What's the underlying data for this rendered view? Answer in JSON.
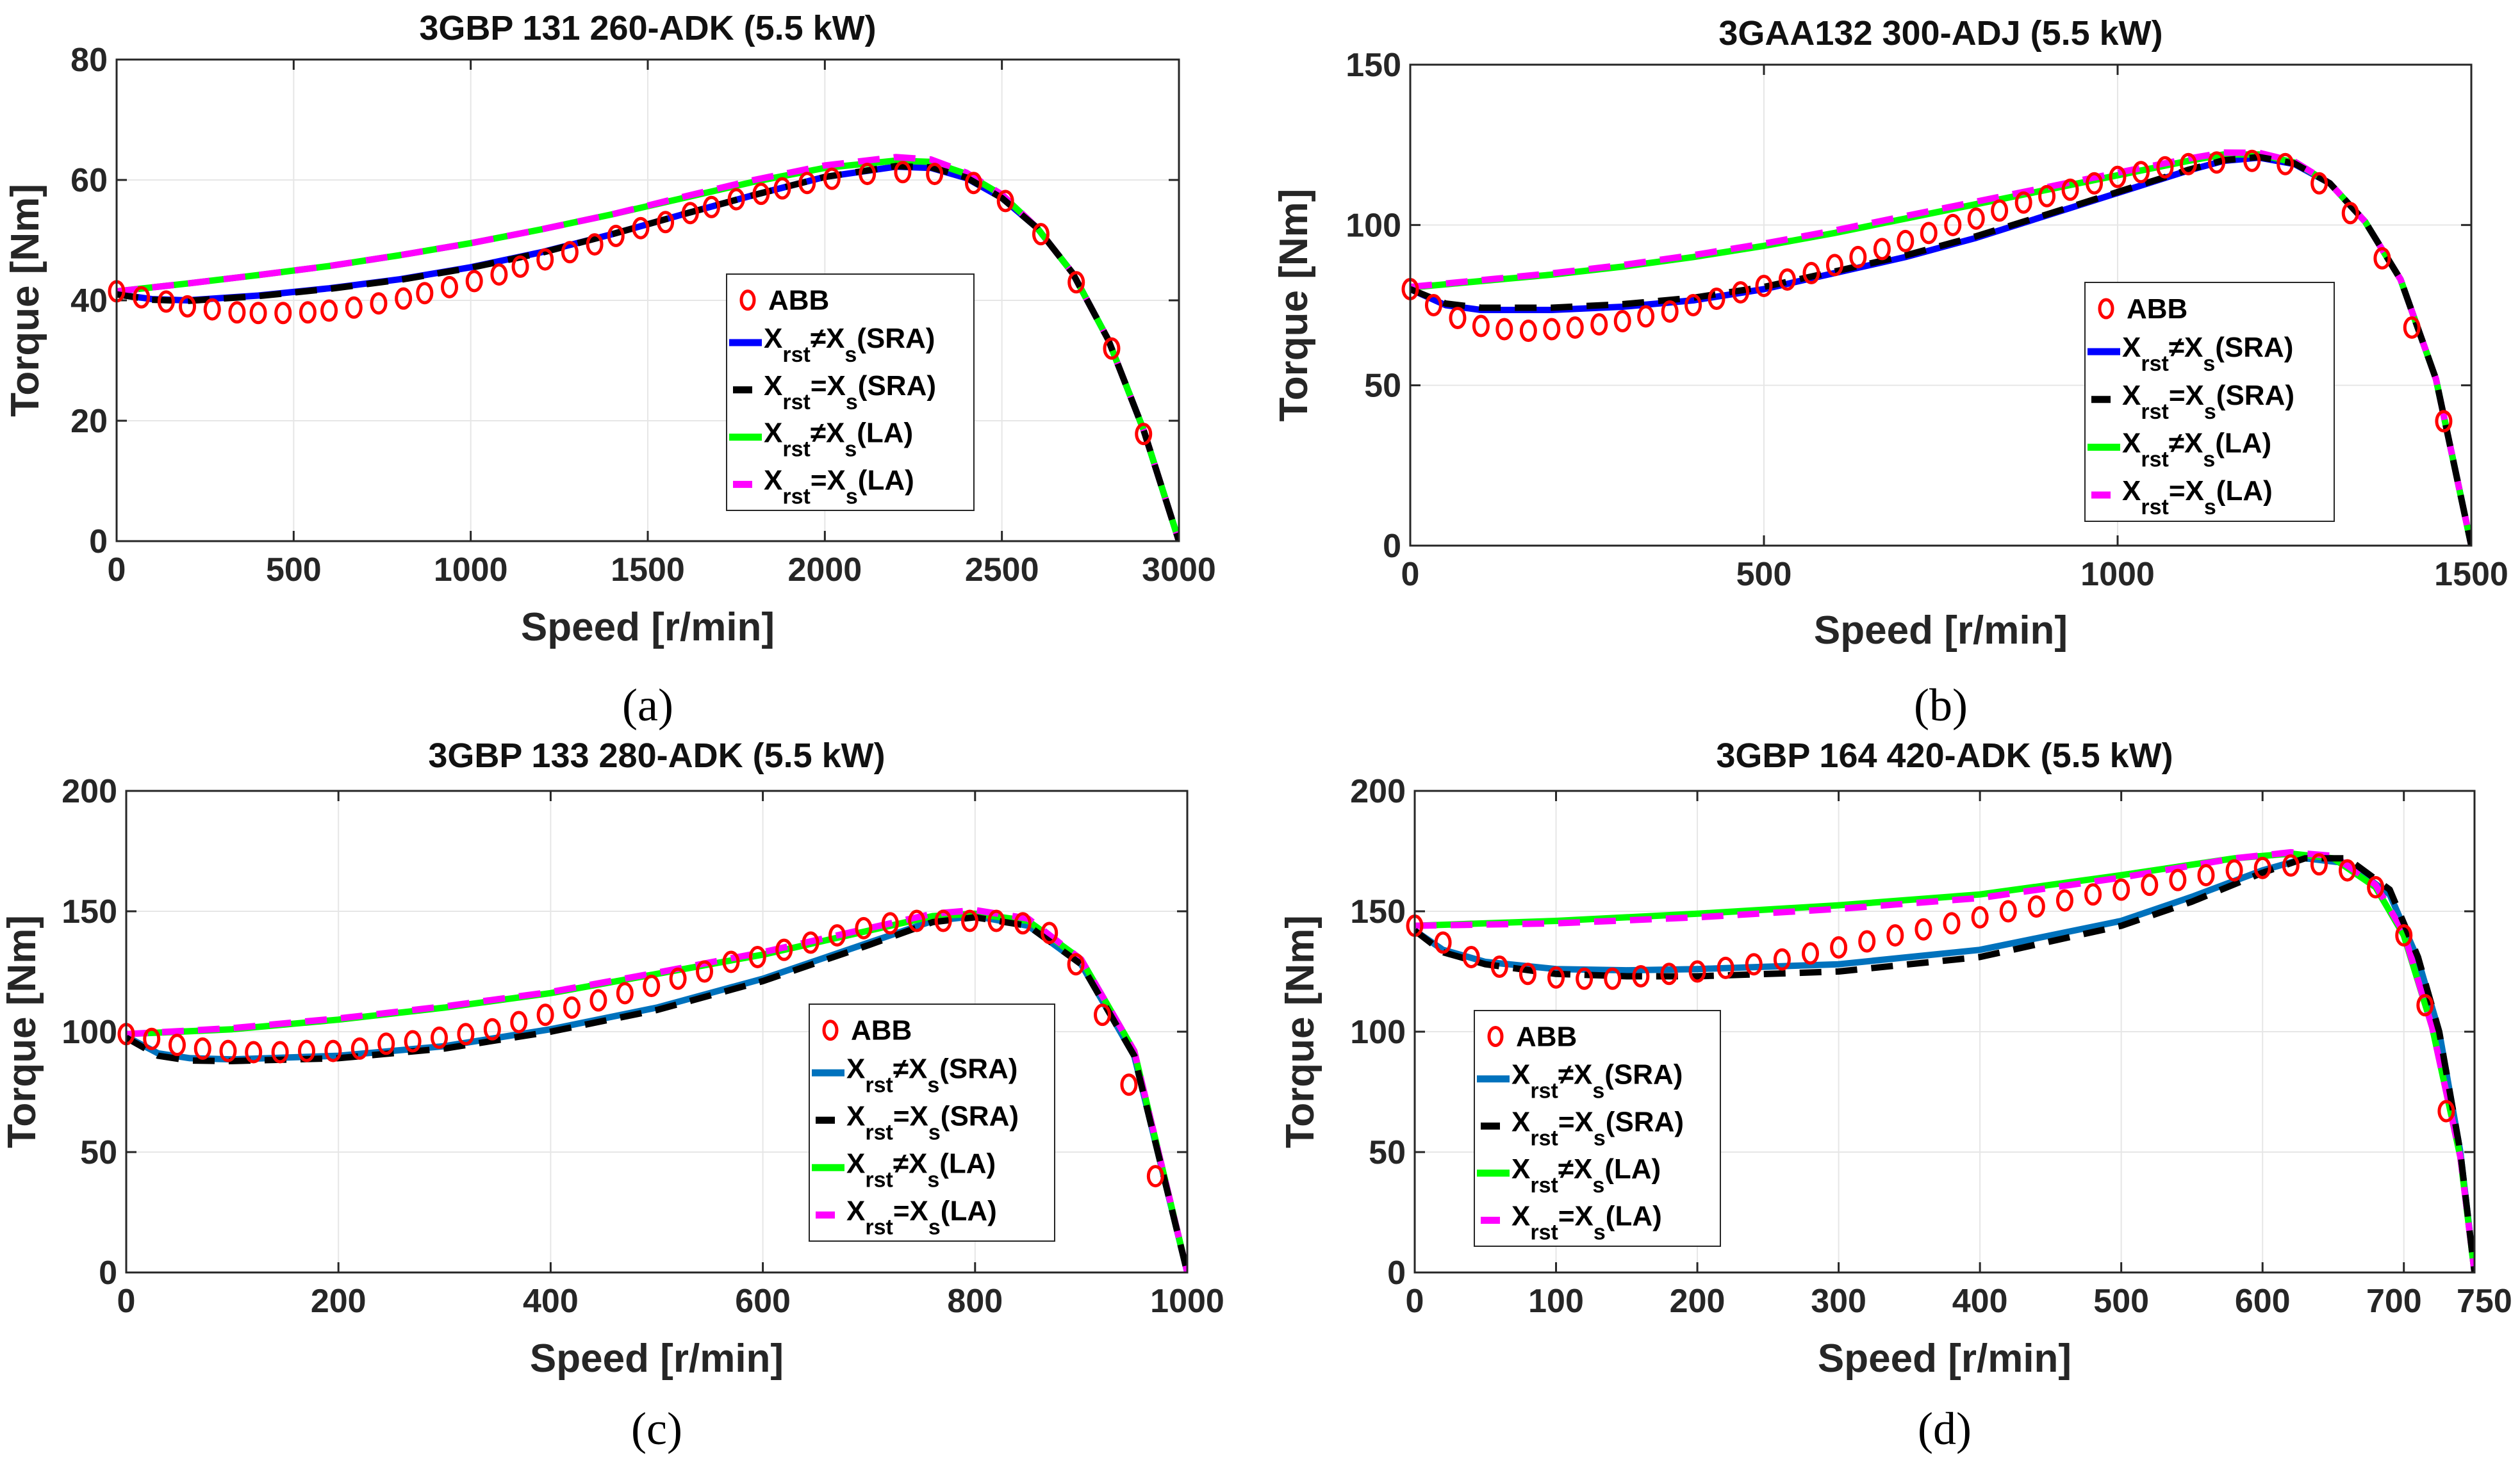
{
  "chart_data": [
    {
      "type": "line",
      "panel": "(a)",
      "title": "3GBP 131 260-ADK (5.5 kW)",
      "xlabel": "Speed [r/min]",
      "ylabel": "Torque [Nm]",
      "xlim": [
        0,
        3000
      ],
      "ylim": [
        0,
        80
      ],
      "xticks": [
        0,
        500,
        1000,
        1500,
        2000,
        2500,
        3000
      ],
      "yticks": [
        0,
        20,
        40,
        60,
        80
      ],
      "grid": true,
      "legend_position": "center-right",
      "sra_color": "#0000ff",
      "abb": {
        "x": [
          0,
          70,
          140,
          200,
          270,
          340,
          400,
          470,
          540,
          600,
          670,
          740,
          810,
          870,
          940,
          1010,
          1080,
          1140,
          1210,
          1280,
          1350,
          1410,
          1480,
          1550,
          1620,
          1680,
          1750,
          1820,
          1880,
          1950,
          2020,
          2120,
          2220,
          2310,
          2420,
          2510,
          2610,
          2710,
          2810,
          2900
        ],
        "y": [
          41.5,
          40.5,
          39.8,
          39,
          38.5,
          38,
          37.9,
          37.9,
          38,
          38.3,
          38.8,
          39.5,
          40.3,
          41.2,
          42.2,
          43.2,
          44.3,
          45.6,
          46.8,
          48,
          49.3,
          50.7,
          52,
          53,
          54.5,
          55.5,
          56.8,
          57.7,
          58.6,
          59.5,
          60.2,
          61,
          61.3,
          61,
          59.5,
          56.5,
          51,
          43,
          32,
          17.8
        ]
      },
      "sra_neq": {
        "x": [
          0,
          100,
          200,
          400,
          600,
          800,
          1000,
          1200,
          1400,
          1600,
          1800,
          2000,
          2200,
          2300,
          2400,
          2500,
          2600,
          2700,
          2800,
          2900,
          3000
        ],
        "y": [
          41,
          40.2,
          40,
          40.8,
          42,
          43.5,
          45.5,
          48,
          51,
          54.3,
          57.5,
          60.5,
          62.2,
          62,
          60.3,
          57,
          52,
          44.5,
          33.5,
          18.5,
          0
        ]
      },
      "sra_eq": {
        "x": [
          0,
          100,
          200,
          400,
          600,
          800,
          1000,
          1200,
          1400,
          1600,
          1800,
          2000,
          2200,
          2300,
          2400,
          2500,
          2600,
          2700,
          2800,
          2900,
          3000
        ],
        "y": [
          41,
          40.1,
          39.9,
          40.7,
          41.9,
          43.4,
          45.4,
          47.9,
          51,
          54.3,
          57.5,
          60.5,
          62.3,
          62.1,
          60.4,
          57,
          52,
          44.5,
          33.5,
          18.5,
          0
        ]
      },
      "la_neq": {
        "x": [
          0,
          200,
          400,
          600,
          800,
          1000,
          1200,
          1400,
          1600,
          1800,
          2000,
          2200,
          2300,
          2400,
          2500,
          2600,
          2700,
          2800,
          2900,
          3000
        ],
        "y": [
          41.5,
          42.8,
          44.2,
          45.7,
          47.5,
          49.5,
          51.8,
          54.3,
          57,
          59.7,
          62,
          63.2,
          63,
          61,
          57.5,
          52,
          44.5,
          33.5,
          18.5,
          0
        ]
      },
      "la_eq": {
        "x": [
          0,
          200,
          400,
          600,
          800,
          1000,
          1200,
          1400,
          1600,
          1800,
          2000,
          2200,
          2300,
          2400,
          2500,
          2600,
          2700,
          2800,
          2900,
          3000
        ],
        "y": [
          41.5,
          42.8,
          44.2,
          45.7,
          47.5,
          49.5,
          51.8,
          54.3,
          57.2,
          60,
          62.4,
          63.8,
          63.4,
          61.2,
          57.6,
          52,
          44.5,
          33.5,
          18.5,
          0
        ]
      }
    },
    {
      "type": "line",
      "panel": "(b)",
      "title": "3GAA132 300-ADJ (5.5 kW)",
      "xlabel": "Speed [r/min]",
      "ylabel": "Torque [Nm]",
      "xlim": [
        0,
        1500
      ],
      "ylim": [
        0,
        150
      ],
      "xticks": [
        0,
        500,
        1000,
        1500
      ],
      "yticks": [
        0,
        50,
        100,
        150
      ],
      "grid": true,
      "legend_position": "center-right",
      "sra_color": "#0000ff",
      "abb": {
        "x": [
          0,
          33,
          67,
          100,
          133,
          167,
          200,
          233,
          267,
          300,
          333,
          367,
          400,
          433,
          467,
          500,
          533,
          567,
          600,
          633,
          667,
          700,
          733,
          767,
          800,
          833,
          867,
          900,
          933,
          967,
          1000,
          1033,
          1067,
          1100,
          1140,
          1190,
          1237,
          1285,
          1329,
          1374,
          1416,
          1461
        ],
        "y": [
          80,
          75,
          71,
          68.5,
          67.5,
          67,
          67.5,
          68,
          69,
          70,
          71.5,
          73,
          75,
          77,
          79,
          81,
          83,
          85,
          87.5,
          90,
          92.5,
          95,
          97.5,
          100,
          102,
          104.5,
          107,
          109,
          111,
          113,
          115,
          116.5,
          118,
          119,
          119.5,
          120,
          119,
          113,
          103.7,
          89.6,
          68,
          38.8
        ]
      },
      "sra_neq": {
        "x": [
          0,
          50,
          100,
          200,
          300,
          400,
          500,
          600,
          700,
          800,
          900,
          1000,
          1100,
          1150,
          1200,
          1250,
          1300,
          1350,
          1400,
          1450,
          1500
        ],
        "y": [
          80,
          75,
          73.5,
          73.5,
          74.5,
          76.5,
          80,
          85,
          90,
          96,
          103,
          110,
          117,
          120,
          121,
          119,
          113,
          101,
          83,
          52,
          0
        ]
      },
      "sra_eq": {
        "x": [
          0,
          50,
          100,
          200,
          300,
          400,
          500,
          600,
          700,
          800,
          900,
          1000,
          1100,
          1150,
          1200,
          1250,
          1300,
          1350,
          1400,
          1450,
          1500
        ],
        "y": [
          80,
          75.5,
          74.2,
          74.2,
          75.3,
          77.3,
          80.7,
          85.5,
          90.5,
          96.5,
          103.3,
          110.3,
          117.2,
          120.2,
          121.2,
          119.2,
          113,
          101,
          83,
          52,
          0
        ]
      },
      "la_neq": {
        "x": [
          0,
          100,
          200,
          300,
          400,
          500,
          600,
          700,
          800,
          900,
          1000,
          1100,
          1150,
          1200,
          1250,
          1300,
          1350,
          1400,
          1450,
          1500
        ],
        "y": [
          80.5,
          82.5,
          84.5,
          87,
          90,
          93.5,
          97.5,
          102,
          106.5,
          111,
          115.5,
          120,
          122,
          122,
          119.5,
          113,
          101,
          83,
          52,
          0
        ]
      },
      "la_eq": {
        "x": [
          0,
          100,
          200,
          300,
          400,
          500,
          600,
          700,
          800,
          900,
          1000,
          1100,
          1150,
          1200,
          1250,
          1300,
          1350,
          1400,
          1450,
          1500
        ],
        "y": [
          80.7,
          82.8,
          84.9,
          87.5,
          90.6,
          94.2,
          98.3,
          102.8,
          107.3,
          111.8,
          116.3,
          120.7,
          122.6,
          122.5,
          119.8,
          113,
          101,
          83,
          52,
          0
        ]
      }
    },
    {
      "type": "line",
      "panel": "(c)",
      "title": "3GBP 133 280-ADK (5.5 kW)",
      "xlabel": "Speed [r/min]",
      "ylabel": "Torque [Nm]",
      "xlim": [
        0,
        1000
      ],
      "ylim": [
        0,
        200
      ],
      "xticks": [
        0,
        200,
        400,
        600,
        800,
        1000
      ],
      "yticks": [
        0,
        50,
        100,
        150,
        200
      ],
      "grid": true,
      "legend_position": "center-right",
      "sra_color": "#0072bd",
      "abb": {
        "x": [
          0,
          24,
          48,
          72,
          96,
          120,
          145,
          170,
          195,
          220,
          245,
          270,
          295,
          320,
          345,
          370,
          395,
          420,
          445,
          470,
          495,
          520,
          545,
          570,
          595,
          620,
          645,
          670,
          695,
          720,
          745,
          770,
          795,
          820,
          845,
          870,
          895,
          920,
          945,
          970
        ],
        "y": [
          99,
          97,
          94.5,
          93,
          92,
          91.5,
          91.5,
          92,
          92,
          93,
          95,
          96,
          97.5,
          99,
          101,
          104,
          107,
          110,
          113,
          116,
          119,
          122,
          125,
          129,
          131,
          134,
          137,
          140,
          143,
          145,
          146,
          146,
          146,
          146,
          145,
          141,
          128,
          107,
          78,
          40
        ]
      },
      "sra_neq": {
        "x": [
          0,
          30,
          60,
          100,
          200,
          300,
          400,
          500,
          600,
          700,
          760,
          800,
          850,
          900,
          950,
          1000
        ],
        "y": [
          98,
          91,
          89,
          88.5,
          90,
          94,
          101,
          110,
          122,
          137,
          146,
          148,
          144,
          128,
          90,
          0
        ]
      },
      "sra_eq": {
        "x": [
          0,
          30,
          60,
          100,
          200,
          300,
          400,
          500,
          600,
          700,
          760,
          800,
          850,
          900,
          950,
          1000
        ],
        "y": [
          97.5,
          90,
          88,
          87.8,
          89,
          93,
          100,
          109,
          121,
          136,
          145.5,
          147.5,
          144,
          128,
          90,
          0
        ]
      },
      "la_neq": {
        "x": [
          0,
          100,
          200,
          300,
          400,
          500,
          600,
          700,
          760,
          800,
          850,
          900,
          950,
          1000
        ],
        "y": [
          99,
          101,
          105,
          110,
          116,
          124,
          132,
          142,
          148,
          149,
          146,
          130,
          92,
          0
        ]
      },
      "la_eq": {
        "x": [
          0,
          100,
          200,
          300,
          400,
          500,
          600,
          700,
          760,
          800,
          850,
          900,
          950,
          1000
        ],
        "y": [
          99,
          101.5,
          105.5,
          110.5,
          116.5,
          124.5,
          133,
          143,
          149,
          150.5,
          147,
          130,
          92,
          0
        ]
      }
    },
    {
      "type": "line",
      "panel": "(d)",
      "title": "3GBP 164 420-ADK (5.5 kW)",
      "xlabel": "Speed [r/min]",
      "ylabel": "Torque [Nm]",
      "xlim": [
        0,
        750
      ],
      "ylim": [
        0,
        200
      ],
      "xticks": [
        0,
        100,
        200,
        300,
        400,
        500,
        600,
        700,
        750
      ],
      "yticks": [
        0,
        50,
        100,
        150,
        200
      ],
      "grid": true,
      "legend_position": "center-left",
      "sra_color": "#0072bd",
      "abb": {
        "x": [
          0,
          20,
          40,
          60,
          80,
          100,
          120,
          140,
          160,
          180,
          200,
          220,
          240,
          260,
          280,
          300,
          320,
          340,
          360,
          380,
          400,
          420,
          440,
          460,
          480,
          500,
          520,
          540,
          560,
          580,
          600,
          620,
          640,
          660,
          680,
          700,
          715,
          730
        ],
        "y": [
          144,
          137,
          131,
          127,
          124,
          122.5,
          122,
          122,
          123,
          124,
          125,
          126.5,
          128,
          130,
          132.5,
          135,
          137.5,
          140,
          142.5,
          145,
          147.5,
          150,
          152,
          154.5,
          157,
          159,
          161,
          163,
          165,
          167,
          168,
          169,
          169.5,
          167,
          160,
          140,
          111,
          67
        ]
      },
      "sra_neq": {
        "x": [
          0,
          20,
          50,
          100,
          150,
          200,
          300,
          400,
          500,
          550,
          600,
          630,
          660,
          690,
          710,
          725,
          740,
          750
        ],
        "y": [
          142,
          134,
          129,
          126,
          125.5,
          126,
          128,
          134,
          146,
          156,
          167,
          172,
          170,
          157,
          130,
          100,
          50,
          0
        ]
      },
      "sra_eq": {
        "x": [
          0,
          20,
          50,
          100,
          150,
          200,
          300,
          400,
          500,
          550,
          600,
          630,
          660,
          690,
          710,
          725,
          740,
          750
        ],
        "y": [
          142,
          133,
          128,
          124,
          123,
          123,
          125,
          131,
          144,
          154,
          166,
          172,
          172,
          159,
          131,
          100,
          50,
          0
        ]
      },
      "la_neq": {
        "x": [
          0,
          100,
          200,
          300,
          400,
          500,
          580,
          620,
          650,
          680,
          700,
          720,
          740,
          750
        ],
        "y": [
          144,
          146,
          149,
          152.5,
          157,
          165,
          172,
          174,
          172,
          160,
          140,
          102,
          48,
          0
        ]
      },
      "la_eq": {
        "x": [
          0,
          100,
          200,
          300,
          400,
          500,
          580,
          620,
          650,
          680,
          700,
          720,
          740,
          750
        ],
        "y": [
          144,
          145,
          147.5,
          151,
          155.5,
          164,
          172,
          174.5,
          173,
          161,
          141,
          102,
          48,
          0
        ]
      }
    }
  ],
  "legend": {
    "abb": "ABB",
    "entries": [
      {
        "main": "X",
        "sub1": "rst",
        "mid": "≠X",
        "sub2": "s",
        "tail": "(SRA)"
      },
      {
        "main": "X",
        "sub1": "rst",
        "mid": "=X",
        "sub2": "s",
        "tail": "(SRA)"
      },
      {
        "main": "X",
        "sub1": "rst",
        "mid": "≠X",
        "sub2": "s",
        "tail": "(LA)"
      },
      {
        "main": "X",
        "sub1": "rst",
        "mid": "=X",
        "sub2": "s",
        "tail": "(LA)"
      }
    ]
  },
  "colors": {
    "abb": "#ff0000",
    "sra_eq": "#000000",
    "la_neq": "#00ff00",
    "la_eq": "#ff00ff",
    "grid": "#e6e6e6"
  }
}
